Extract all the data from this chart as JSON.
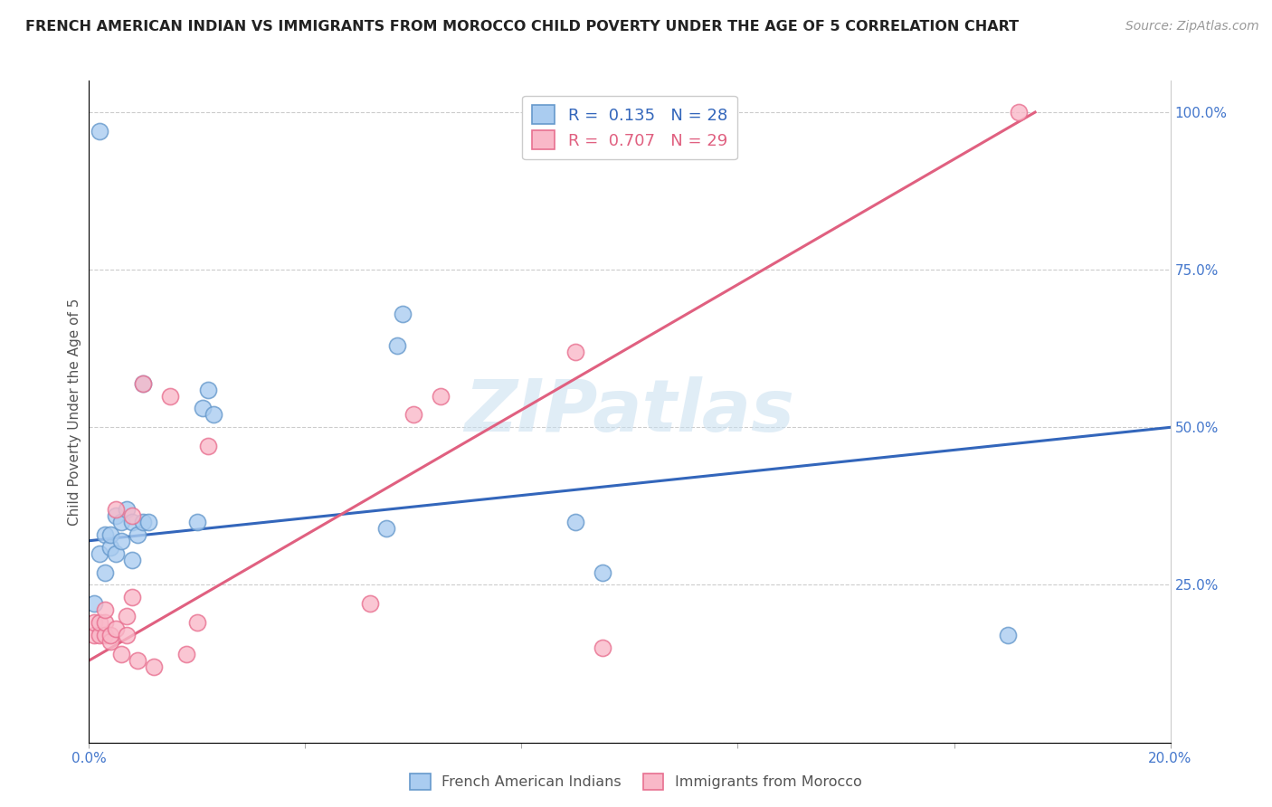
{
  "title": "FRENCH AMERICAN INDIAN VS IMMIGRANTS FROM MOROCCO CHILD POVERTY UNDER THE AGE OF 5 CORRELATION CHART",
  "source": "Source: ZipAtlas.com",
  "ylabel": "Child Poverty Under the Age of 5",
  "xmin": 0.0,
  "xmax": 0.2,
  "ymin": 0.0,
  "ymax": 1.05,
  "xtick_positions": [
    0.0,
    0.04,
    0.08,
    0.12,
    0.16,
    0.2
  ],
  "xtick_labels": [
    "0.0%",
    "",
    "",
    "",
    "",
    "20.0%"
  ],
  "ytick_positions": [
    0.0,
    0.25,
    0.5,
    0.75,
    1.0
  ],
  "ytick_labels": [
    "",
    "25.0%",
    "50.0%",
    "75.0%",
    "100.0%"
  ],
  "legend_line1": "R =  0.135   N = 28",
  "legend_line2": "R =  0.707   N = 29",
  "series1_label": "French American Indians",
  "series2_label": "Immigrants from Morocco",
  "series1_color_face": "#aaccf0",
  "series1_color_edge": "#6699cc",
  "series2_color_face": "#f9b8c8",
  "series2_color_edge": "#e87090",
  "blue_line_color": "#3366bb",
  "pink_line_color": "#e06080",
  "watermark": "ZIPatlas",
  "blue_line_x": [
    0.0,
    0.2
  ],
  "blue_line_y": [
    0.32,
    0.5
  ],
  "pink_line_x": [
    0.0,
    0.175
  ],
  "pink_line_y": [
    0.13,
    1.0
  ],
  "blue_points_x": [
    0.001,
    0.002,
    0.003,
    0.003,
    0.004,
    0.004,
    0.005,
    0.005,
    0.006,
    0.006,
    0.007,
    0.008,
    0.008,
    0.009,
    0.01,
    0.01,
    0.011,
    0.02,
    0.021,
    0.022,
    0.023,
    0.055,
    0.057,
    0.058,
    0.09,
    0.095,
    0.17,
    0.002
  ],
  "blue_points_y": [
    0.22,
    0.3,
    0.27,
    0.33,
    0.31,
    0.33,
    0.3,
    0.36,
    0.32,
    0.35,
    0.37,
    0.29,
    0.35,
    0.33,
    0.35,
    0.57,
    0.35,
    0.35,
    0.53,
    0.56,
    0.52,
    0.34,
    0.63,
    0.68,
    0.35,
    0.27,
    0.17,
    0.97
  ],
  "pink_points_x": [
    0.001,
    0.001,
    0.002,
    0.002,
    0.003,
    0.003,
    0.003,
    0.004,
    0.004,
    0.005,
    0.005,
    0.006,
    0.007,
    0.007,
    0.008,
    0.008,
    0.009,
    0.01,
    0.012,
    0.015,
    0.018,
    0.02,
    0.022,
    0.052,
    0.06,
    0.065,
    0.09,
    0.095,
    0.172
  ],
  "pink_points_y": [
    0.17,
    0.19,
    0.17,
    0.19,
    0.17,
    0.19,
    0.21,
    0.16,
    0.17,
    0.18,
    0.37,
    0.14,
    0.17,
    0.2,
    0.23,
    0.36,
    0.13,
    0.57,
    0.12,
    0.55,
    0.14,
    0.19,
    0.47,
    0.22,
    0.52,
    0.55,
    0.62,
    0.15,
    1.0
  ]
}
